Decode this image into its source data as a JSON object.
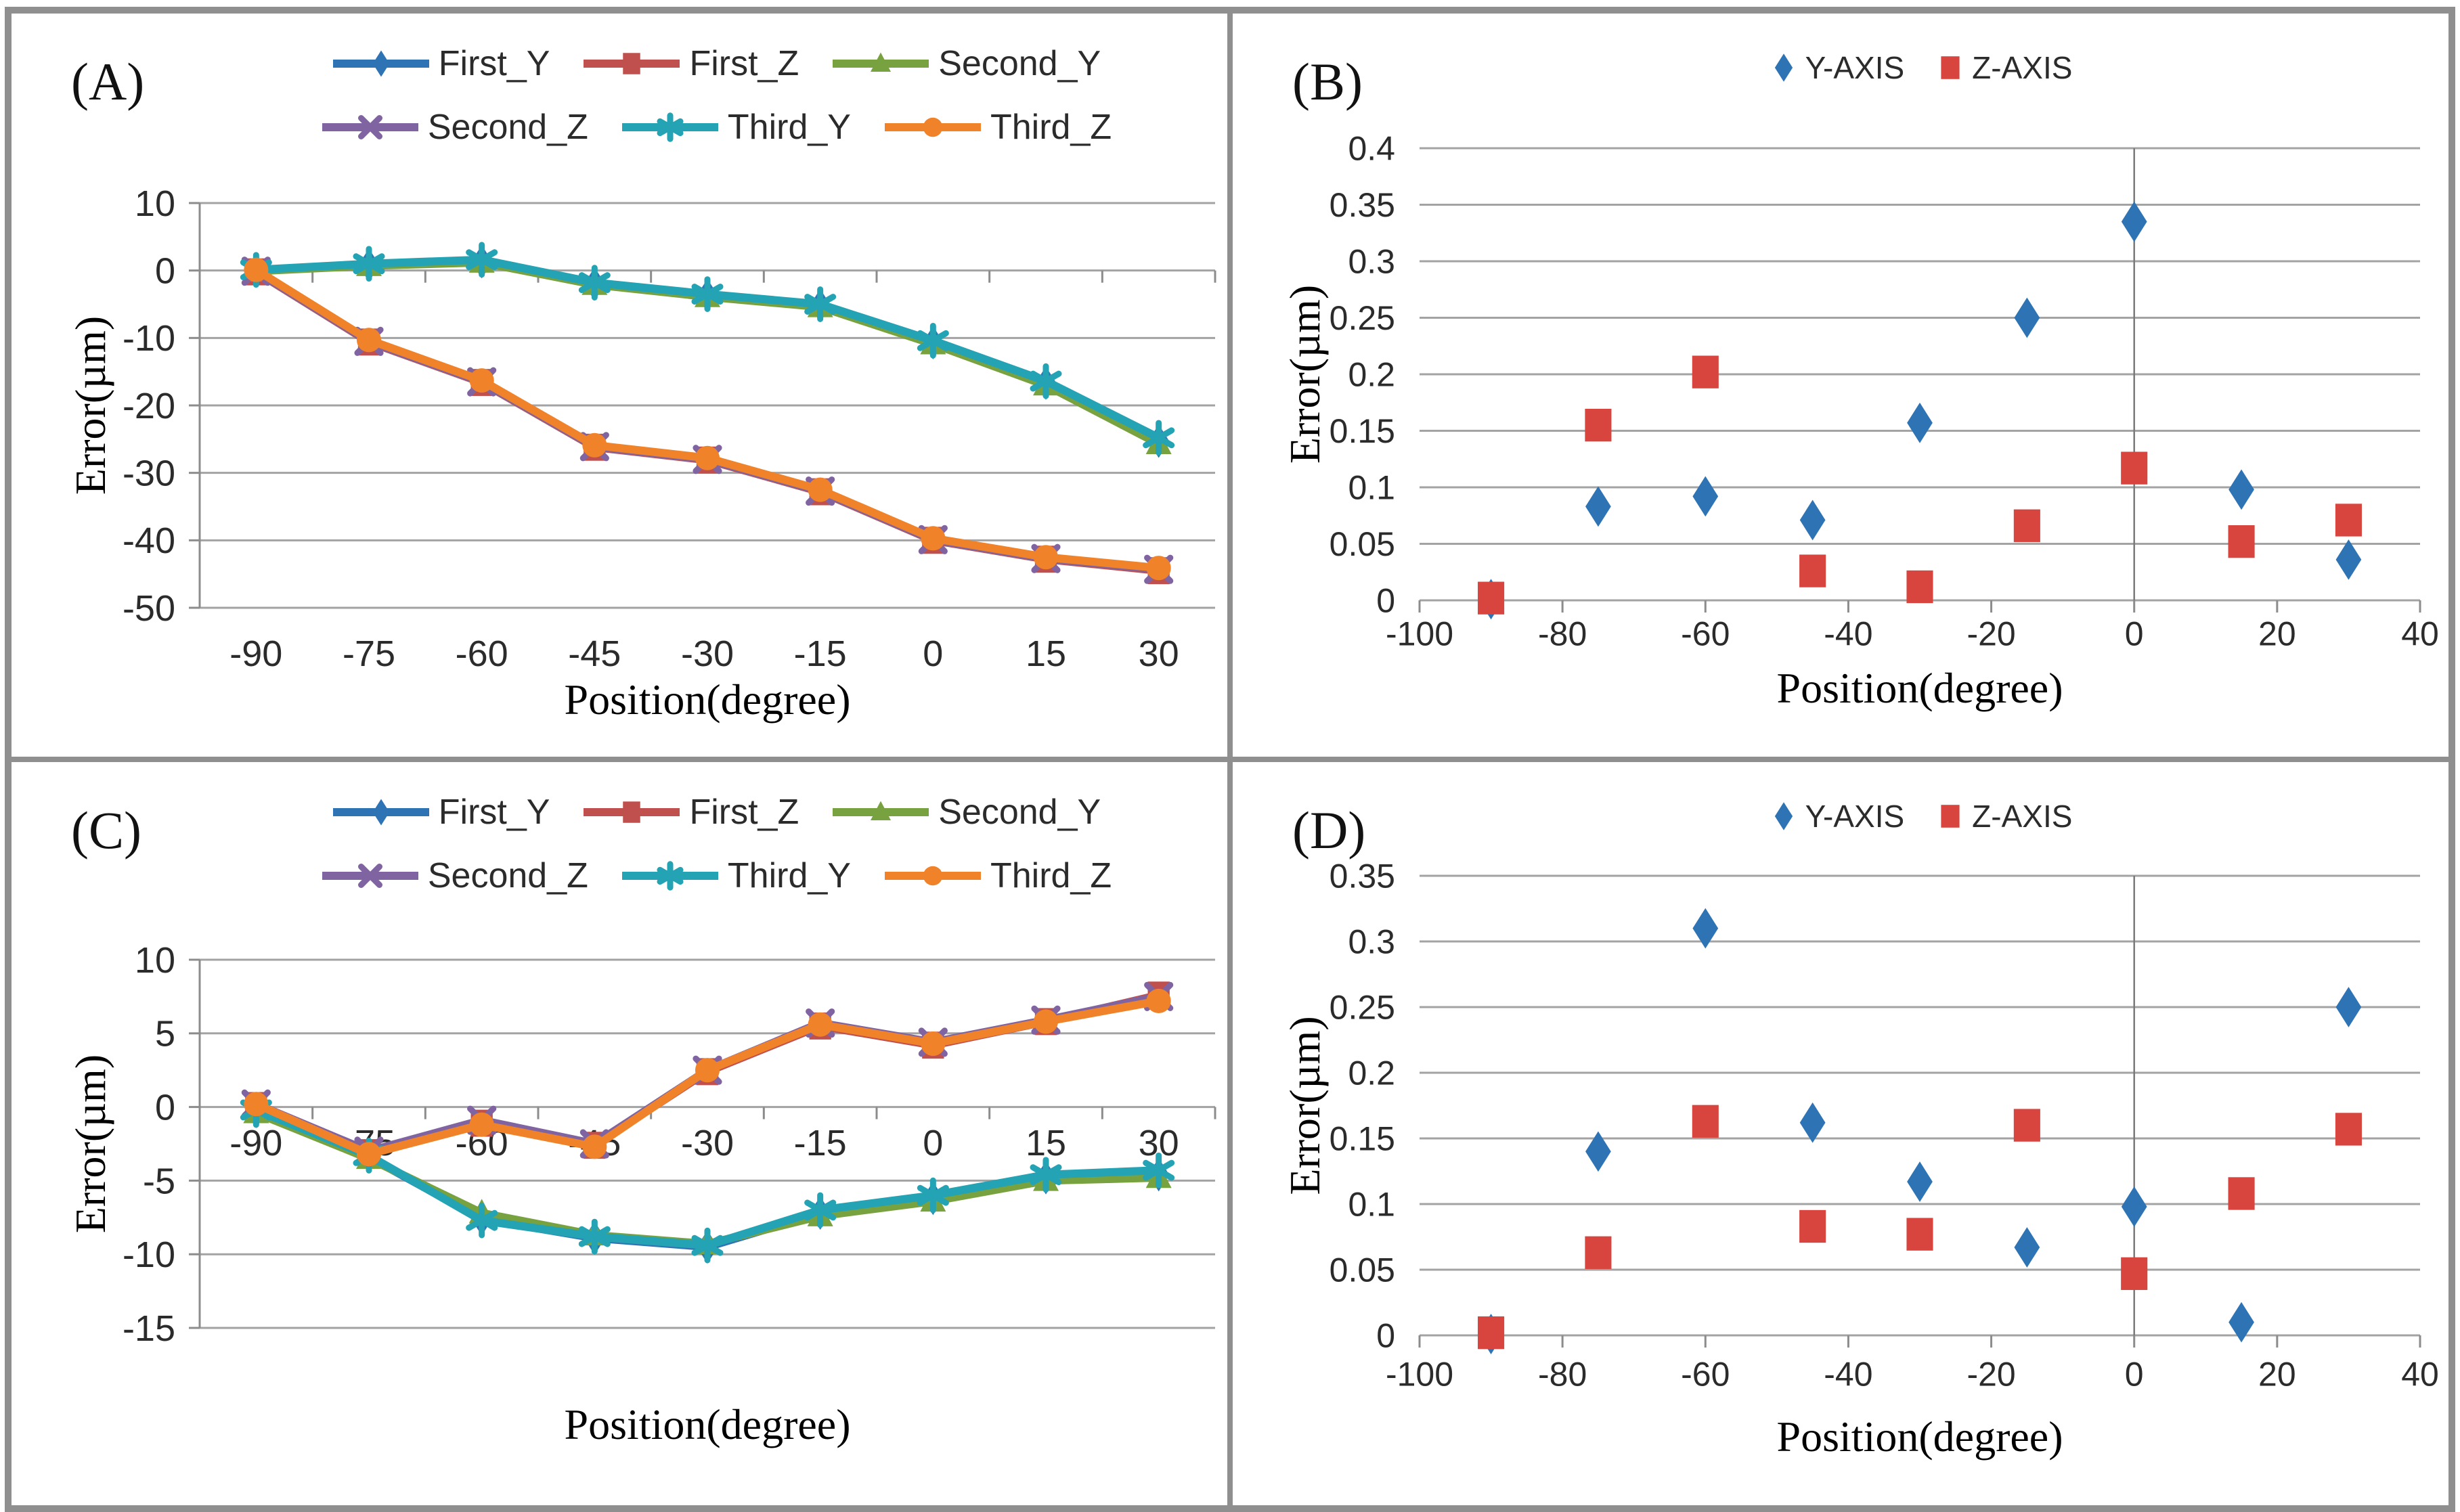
{
  "chart_data": [
    {
      "panel_label": "(A)",
      "type": "line",
      "xlabel": "Position(degree)",
      "ylabel": "Error(µm)",
      "x_categories": [
        -90,
        -75,
        -60,
        -45,
        -30,
        -15,
        0,
        15,
        30
      ],
      "x_tick_labels": [
        "-90",
        "-75",
        "-60",
        "-45",
        "-30",
        "-15",
        "0",
        "15",
        "30"
      ],
      "ylim": [
        -50,
        10
      ],
      "ytick_step": 10,
      "y_tick_labels": [
        "10",
        "0",
        "-10",
        "-20",
        "-30",
        "-40",
        "-50"
      ],
      "grid": true,
      "legend_position": "top",
      "legend_rows": [
        [
          "First_Y",
          "First_Z",
          "Second_Y"
        ],
        [
          "Second_Z",
          "Third_Y",
          "Third_Z"
        ]
      ],
      "series": [
        {
          "name": "First_Y",
          "color": "#2e74b5",
          "marker": "diamond",
          "values": [
            0.0,
            0.8,
            1.3,
            -2.0,
            -3.7,
            -5.2,
            -10.7,
            -16.7,
            -25.3
          ]
        },
        {
          "name": "First_Z",
          "color": "#c0504d",
          "marker": "square",
          "values": [
            -0.2,
            -10.6,
            -16.6,
            -26.2,
            -28.1,
            -32.8,
            -40.0,
            -42.8,
            -44.5
          ]
        },
        {
          "name": "Second_Y",
          "color": "#78a23f",
          "marker": "triangle",
          "values": [
            -0.1,
            0.7,
            1.2,
            -2.1,
            -3.9,
            -5.4,
            -10.9,
            -17.0,
            -25.7
          ]
        },
        {
          "name": "Second_Z",
          "color": "#8064a2",
          "marker": "x",
          "values": [
            -0.1,
            -10.5,
            -16.5,
            -26.1,
            -28.0,
            -32.7,
            -39.9,
            -42.7,
            -44.3
          ]
        },
        {
          "name": "Third_Y",
          "color": "#23a3b4",
          "marker": "asterisk",
          "values": [
            0.1,
            1.0,
            1.6,
            -1.8,
            -3.5,
            -5.0,
            -10.4,
            -16.4,
            -24.8
          ]
        },
        {
          "name": "Third_Z",
          "color": "#f0832a",
          "marker": "circle",
          "values": [
            0.1,
            -10.3,
            -16.3,
            -25.9,
            -27.8,
            -32.5,
            -39.7,
            -42.5,
            -44.1
          ]
        }
      ]
    },
    {
      "panel_label": "(B)",
      "type": "scatter",
      "xlabel": "Position(degree)",
      "ylabel": "Error(µm)",
      "x_categories": [
        -90,
        -75,
        -60,
        -45,
        -30,
        -15,
        0,
        15,
        30
      ],
      "xlim": [
        -100,
        40
      ],
      "x_tick_values": [
        -100,
        -80,
        -60,
        -40,
        -20,
        0,
        20,
        40
      ],
      "x_tick_labels": [
        "-100",
        "-80",
        "-60",
        "-40",
        "-20",
        "0",
        "20",
        "40"
      ],
      "ylim": [
        0,
        0.4
      ],
      "ytick_step": 0.05,
      "y_tick_labels": [
        "0.4",
        "0.35",
        "0.3",
        "0.25",
        "0.2",
        "0.15",
        "0.1",
        "0.05",
        "0"
      ],
      "grid": true,
      "zero_vline": true,
      "legend_position": "top",
      "legend_rows": [
        [
          "Y-AXIS",
          "Z-AXIS"
        ]
      ],
      "series": [
        {
          "name": "Y-AXIS",
          "color": "#2e74b5",
          "marker": "diamond",
          "values": [
            0.001,
            0.083,
            0.092,
            0.071,
            0.157,
            0.25,
            0.335,
            0.098,
            0.036
          ]
        },
        {
          "name": "Z-AXIS",
          "color": "#d8453e",
          "marker": "square",
          "values": [
            0.002,
            0.155,
            0.202,
            0.026,
            0.012,
            0.066,
            0.117,
            0.052,
            0.071
          ]
        }
      ]
    },
    {
      "panel_label": "(C)",
      "type": "line",
      "xlabel": "Position(degree)",
      "ylabel": "Error(µm)",
      "x_categories": [
        -90,
        -75,
        -60,
        -45,
        -30,
        -15,
        0,
        15,
        30
      ],
      "x_tick_labels": [
        "-90",
        "-75",
        "-60",
        "-45",
        "-30",
        "-15",
        "0",
        "15",
        "30"
      ],
      "ylim": [
        -15,
        10
      ],
      "ytick_step": 5,
      "y_tick_labels": [
        "10",
        "5",
        "0",
        "-5",
        "-10",
        "-15"
      ],
      "grid": true,
      "legend_position": "top",
      "legend_rows": [
        [
          "First_Y",
          "First_Z",
          "Second_Y"
        ],
        [
          "Second_Z",
          "Third_Y",
          "Third_Z"
        ]
      ],
      "series": [
        {
          "name": "First_Y",
          "color": "#2e74b5",
          "marker": "diamond",
          "values": [
            -0.3,
            -3.4,
            -7.6,
            -8.9,
            -9.5,
            -7.2,
            -6.2,
            -4.8,
            -4.6
          ]
        },
        {
          "name": "First_Z",
          "color": "#c0504d",
          "marker": "square",
          "values": [
            0.1,
            -3.1,
            -1.1,
            -2.6,
            2.4,
            5.5,
            4.2,
            5.8,
            7.6
          ]
        },
        {
          "name": "Second_Y",
          "color": "#78a23f",
          "marker": "triangle",
          "values": [
            -0.4,
            -3.5,
            -7.2,
            -8.7,
            -9.3,
            -7.4,
            -6.4,
            -5.0,
            -4.8
          ]
        },
        {
          "name": "Second_Z",
          "color": "#8064a2",
          "marker": "x",
          "values": [
            0.2,
            -3.0,
            -0.9,
            -2.5,
            2.5,
            5.7,
            4.4,
            5.9,
            7.5
          ]
        },
        {
          "name": "Third_Y",
          "color": "#23a3b4",
          "marker": "asterisk",
          "values": [
            -0.2,
            -3.3,
            -7.7,
            -8.8,
            -9.4,
            -7.0,
            -6.0,
            -4.6,
            -4.3
          ]
        },
        {
          "name": "Third_Z",
          "color": "#f0832a",
          "marker": "circle",
          "values": [
            0.2,
            -3.2,
            -1.2,
            -2.7,
            2.5,
            5.6,
            4.3,
            5.8,
            7.2
          ]
        }
      ]
    },
    {
      "panel_label": "(D)",
      "type": "scatter",
      "xlabel": "Position(degree)",
      "ylabel": "Error(µm)",
      "x_categories": [
        -90,
        -75,
        -60,
        -45,
        -30,
        -15,
        0,
        15,
        30
      ],
      "xlim": [
        -100,
        40
      ],
      "x_tick_values": [
        -100,
        -80,
        -60,
        -40,
        -20,
        0,
        20,
        40
      ],
      "x_tick_labels": [
        "-100",
        "-80",
        "-60",
        "-40",
        "-20",
        "0",
        "20",
        "40"
      ],
      "ylim": [
        0,
        0.35
      ],
      "ytick_step": 0.05,
      "y_tick_labels": [
        "0.35",
        "0.3",
        "0.25",
        "0.2",
        "0.15",
        "0.1",
        "0.05",
        "0"
      ],
      "grid": true,
      "zero_vline": true,
      "legend_position": "top",
      "legend_rows": [
        [
          "Y-AXIS",
          "Z-AXIS"
        ]
      ],
      "series": [
        {
          "name": "Y-AXIS",
          "color": "#2e74b5",
          "marker": "diamond",
          "values": [
            0.001,
            0.14,
            0.31,
            0.162,
            0.117,
            0.067,
            0.098,
            0.01,
            0.25
          ]
        },
        {
          "name": "Z-AXIS",
          "color": "#d8453e",
          "marker": "square",
          "values": [
            0.002,
            0.063,
            0.163,
            0.083,
            0.077,
            0.16,
            0.047,
            0.108,
            0.157
          ]
        }
      ]
    }
  ],
  "style_colors": {
    "gridline": "#a3a3a3",
    "axis": "#8c8c8c",
    "zero_vline": "#7a7a7a",
    "frame": "#8f8f8f",
    "tick_text": "#2b2b2b"
  }
}
